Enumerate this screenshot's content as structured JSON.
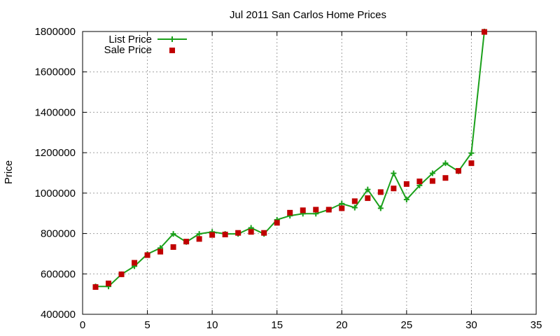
{
  "chart_data": {
    "type": "line",
    "title": "Jul 2011 San Carlos Home Prices",
    "xlabel": "",
    "ylabel": "Price",
    "xlim": [
      0,
      35
    ],
    "ylim": [
      400000,
      1800000
    ],
    "xticks": [
      0,
      5,
      10,
      15,
      20,
      25,
      30,
      35
    ],
    "yticks": [
      400000,
      600000,
      800000,
      1000000,
      1200000,
      1400000,
      1600000,
      1800000
    ],
    "grid": true,
    "legend_position": "top-left",
    "series": [
      {
        "name": "List Price",
        "style": "line-plus-markers",
        "color": "#1aa01a",
        "x": [
          1,
          2,
          3,
          4,
          5,
          6,
          7,
          8,
          9,
          10,
          11,
          12,
          13,
          14,
          15,
          16,
          17,
          18,
          19,
          20,
          21,
          22,
          23,
          24,
          25,
          26,
          27,
          28,
          29,
          30,
          31
        ],
        "y": [
          538000,
          538000,
          598000,
          638000,
          698000,
          728000,
          798000,
          758000,
          798000,
          808000,
          798000,
          798000,
          828000,
          798000,
          868000,
          888000,
          898000,
          898000,
          918000,
          948000,
          928000,
          1018000,
          925000,
          1098000,
          968000,
          1038000,
          1098000,
          1148000,
          1108000,
          1198000,
          1800000
        ]
      },
      {
        "name": "Sale Price",
        "style": "squares",
        "color": "#c00000",
        "x": [
          1,
          2,
          3,
          4,
          5,
          6,
          7,
          8,
          9,
          10,
          11,
          12,
          13,
          14,
          15,
          16,
          17,
          18,
          19,
          20,
          21,
          22,
          23,
          24,
          25,
          26,
          27,
          28,
          29,
          30,
          31
        ],
        "y": [
          535000,
          553000,
          598000,
          655000,
          693000,
          710000,
          733000,
          760000,
          773000,
          793000,
          795000,
          803000,
          808000,
          803000,
          853000,
          903000,
          915000,
          918000,
          918000,
          925000,
          960000,
          975000,
          1005000,
          1023000,
          1045000,
          1058000,
          1060000,
          1075000,
          1110000,
          1148000,
          1798000
        ]
      }
    ]
  }
}
